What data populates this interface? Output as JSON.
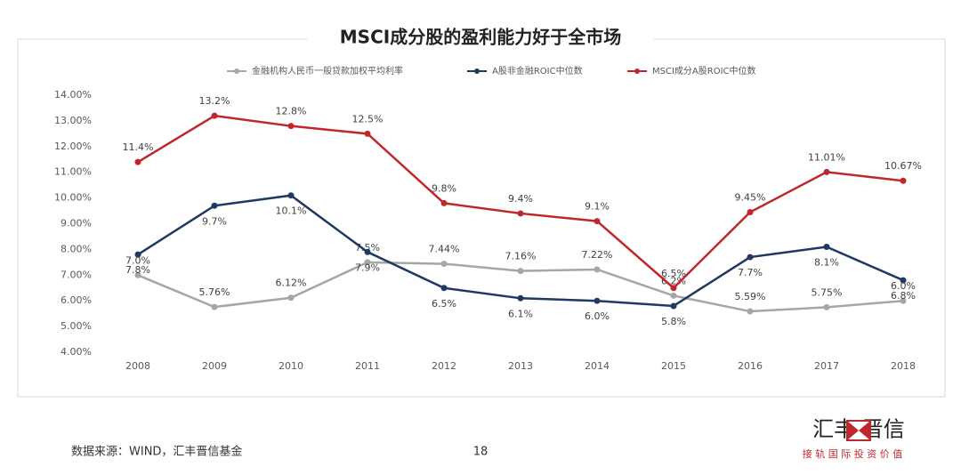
{
  "chart_data": {
    "type": "line",
    "title": "MSCI成分股的盈利能力好于全市场",
    "categories": [
      "2008",
      "2009",
      "2010",
      "2011",
      "2012",
      "2013",
      "2014",
      "2015",
      "2016",
      "2017",
      "2018"
    ],
    "series": [
      {
        "name": "金融机构人民币一般贷款加权平均利率",
        "color": "#a6a6a6",
        "values": [
          7.0,
          5.76,
          6.12,
          7.5,
          7.44,
          7.16,
          7.22,
          6.2,
          5.59,
          5.75,
          6.0
        ],
        "value_labels": [
          "7.0%",
          "5.76%",
          "6.12%",
          "7.5%",
          "7.44%",
          "7.16%",
          "7.22%",
          "6.2%",
          "5.59%",
          "5.75%",
          "6.0%"
        ]
      },
      {
        "name": "A股非金融ROIC中位数",
        "color": "#1f3864",
        "values": [
          7.8,
          9.7,
          10.1,
          7.9,
          6.5,
          6.1,
          6.0,
          5.8,
          7.7,
          8.1,
          6.8
        ],
        "value_labels": [
          "7.8%",
          "9.7%",
          "10.1%",
          "7.9%",
          "6.5%",
          "6.1%",
          "6.0%",
          "5.8%",
          "7.7%",
          "8.1%",
          "6.8%"
        ]
      },
      {
        "name": "MSCI成分A股ROIC中位数",
        "color": "#c0272d",
        "values": [
          11.4,
          13.2,
          12.8,
          12.5,
          9.8,
          9.4,
          9.1,
          6.5,
          9.45,
          11.01,
          10.67
        ],
        "value_labels": [
          "11.4%",
          "13.2%",
          "12.8%",
          "12.5%",
          "9.8%",
          "9.4%",
          "9.1%",
          "6.5%",
          "9.45%",
          "11.01%",
          "10.67%"
        ]
      }
    ],
    "ylim": [
      4,
      14
    ],
    "yticks": [
      {
        "value": 4,
        "label": "4.00%"
      },
      {
        "value": 5,
        "label": "5.00%"
      },
      {
        "value": 6,
        "label": "6.00%"
      },
      {
        "value": 7,
        "label": "7.00%"
      },
      {
        "value": 8,
        "label": "8.00%"
      },
      {
        "value": 9,
        "label": "9.00%"
      },
      {
        "value": 10,
        "label": "10.00%"
      },
      {
        "value": 11,
        "label": "11.00%"
      },
      {
        "value": 12,
        "label": "12.00%"
      },
      {
        "value": 13,
        "label": "13.00%"
      },
      {
        "value": 14,
        "label": "14.00%"
      }
    ],
    "grid": false,
    "legend": "top"
  },
  "footer": {
    "source": "数据来源：WIND，汇丰晋信基金",
    "page": "18",
    "logo": "汇丰 晋信",
    "slogan": "接 轨 国 际   投 资 价 值"
  }
}
